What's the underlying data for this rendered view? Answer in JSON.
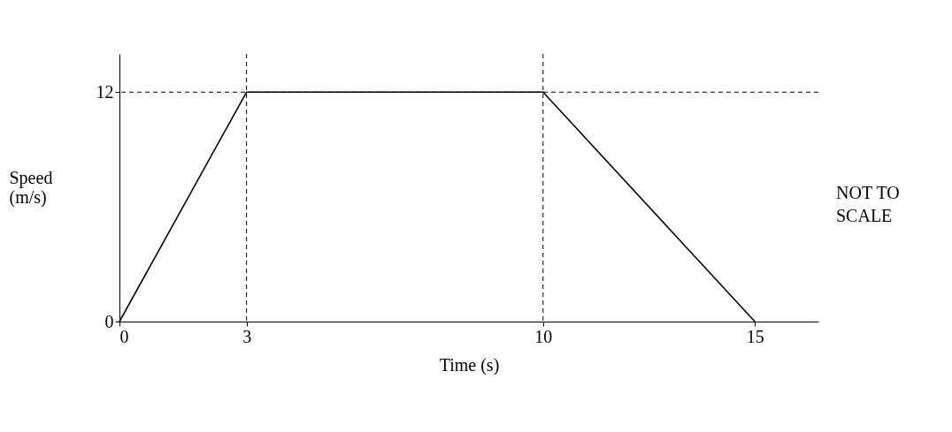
{
  "chart_data": {
    "type": "line",
    "xlabel": "Time (s)",
    "ylabel": "Speed (m/s)",
    "x": [
      0,
      3,
      10,
      15
    ],
    "series": [
      {
        "color": "#000000",
        "values": [
          0,
          12,
          12,
          0
        ]
      }
    ],
    "xlim": [
      0,
      16.5
    ],
    "ylim": [
      0,
      14
    ],
    "xticks": [
      0,
      3,
      10,
      15
    ],
    "yticks": [
      0,
      12
    ],
    "grid": false,
    "marker": "none",
    "line_style": "solid",
    "ref_lines": [
      {
        "axis": "x",
        "value": 3,
        "line_style": "dashed"
      },
      {
        "axis": "x",
        "value": 10,
        "line_style": "dashed"
      },
      {
        "axis": "y",
        "value": 12,
        "line_style": "dashed"
      }
    ],
    "annotations": [
      "NOT TO SCALE"
    ]
  }
}
